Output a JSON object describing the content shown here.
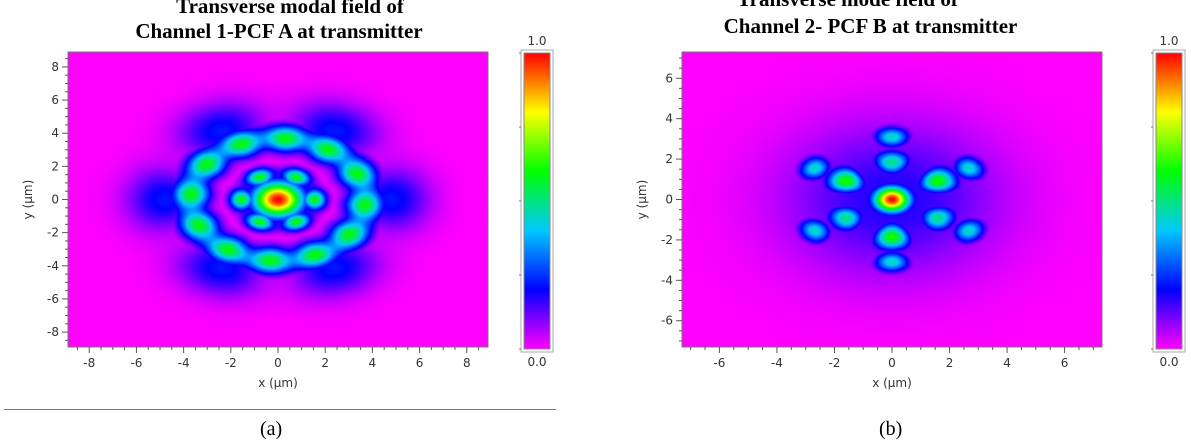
{
  "chart_data": [
    {
      "type": "heatmap",
      "title_line1": "Transverse modal field of",
      "title_line2": "Channel 1-PCF A at transmitter",
      "xlabel": "x (µm)",
      "ylabel": "y (µm)",
      "xlim": [
        -8.9,
        8.9
      ],
      "ylim": [
        -8.9,
        8.9
      ],
      "x_ticks": [
        "-8",
        "-6",
        "-4",
        "-2",
        "0",
        "2",
        "4",
        "6",
        "8"
      ],
      "y_ticks": [
        "8",
        "6",
        "4",
        "2",
        "0",
        "-2",
        "-4",
        "-6",
        "-8"
      ],
      "colorbar_range": [
        0.0,
        1.0
      ],
      "colorbar_max_label": "1.0",
      "colorbar_min_label": "0.0",
      "caption": "(a)"
    },
    {
      "type": "heatmap",
      "title_line1": "Transverse mode field of",
      "title_line2": "Channel 2- PCF B at transmitter",
      "xlabel": "x (µm)",
      "ylabel": "y (µm)",
      "xlim": [
        -7.3,
        7.3
      ],
      "ylim": [
        -7.3,
        7.3
      ],
      "x_ticks": [
        "-6",
        "-4",
        "-2",
        "0",
        "2",
        "4",
        "6"
      ],
      "y_ticks": [
        "6",
        "4",
        "2",
        "0",
        "-2",
        "-4",
        "-6"
      ],
      "colorbar_range": [
        0.0,
        1.0
      ],
      "colorbar_max_label": "1.0",
      "colorbar_min_label": "0.0",
      "caption": "(b)"
    }
  ],
  "colormap": [
    "#ff00ff",
    "#0000ff",
    "#00c8ff",
    "#00ff00",
    "#ffff00",
    "#ff0000"
  ]
}
